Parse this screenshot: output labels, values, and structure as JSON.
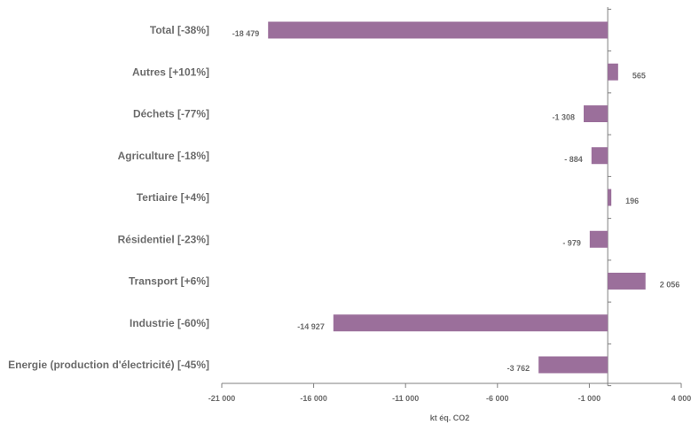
{
  "chart_data": {
    "type": "bar",
    "orientation": "horizontal",
    "categories": [
      "Total [-38%]",
      "Autres [+101%]",
      "Déchets [-77%]",
      "Agriculture [-18%]",
      "Tertiaire  [+4%]",
      "Résidentiel  [-23%]",
      "Transport [+6%]",
      "Industrie [-60%]",
      "Energie (production d'électricité) [-45%]"
    ],
    "values": [
      -18479,
      565,
      -1308,
      -884,
      196,
      -979,
      2056,
      -14927,
      -3762
    ],
    "data_labels": [
      "-18 479",
      "565",
      "-1 308",
      "- 884",
      "196",
      "- 979",
      "2 056",
      "-14 927",
      "-3 762"
    ],
    "xlim": [
      -21000,
      4000
    ],
    "xticks": [
      -21000,
      -16000,
      -11000,
      -6000,
      -1000,
      4000
    ],
    "xtick_labels": [
      "-21 000",
      "-16 000",
      "-11 000",
      "-6 000",
      "-1 000",
      "4 000"
    ],
    "xlabel": "kt éq. CO2",
    "grid": false,
    "legend": "none",
    "colors": {
      "bar": "#9b6f9b",
      "text": "#6b6b6b",
      "axis": "#7f7f7f"
    }
  }
}
